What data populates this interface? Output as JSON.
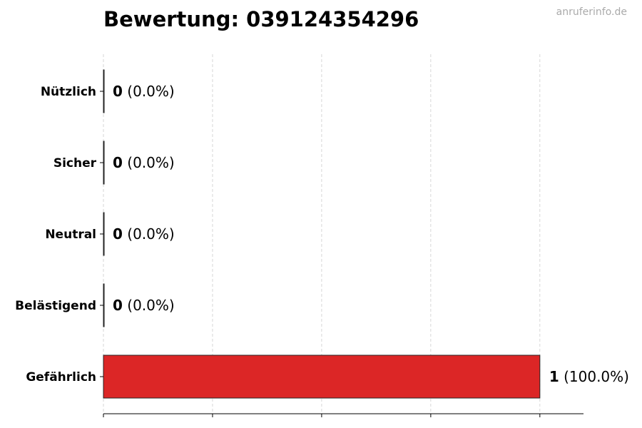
{
  "chart_data": {
    "type": "bar",
    "orientation": "horizontal",
    "title": "Bewertung: 039124354296",
    "watermark": "anruferinfo.de",
    "categories": [
      "Nützlich",
      "Sicher",
      "Neutral",
      "Belästigend",
      "Gefährlich"
    ],
    "values": [
      0,
      0,
      0,
      0,
      1
    ],
    "percent_labels": [
      "(0.0%)",
      "(0.0%)",
      "(0.0%)",
      "(0.0%)",
      "(100.0%)"
    ],
    "colors": [
      "#2e9e44",
      "#2e9e44",
      "#888888",
      "#e8822a",
      "#dc2626"
    ],
    "xlim": [
      0,
      1.1
    ],
    "xticks": [
      0,
      0.25,
      0.5,
      0.75,
      1
    ],
    "xtick_labels_shown": false,
    "grid": "x dashed",
    "xlabel": "",
    "ylabel": ""
  }
}
